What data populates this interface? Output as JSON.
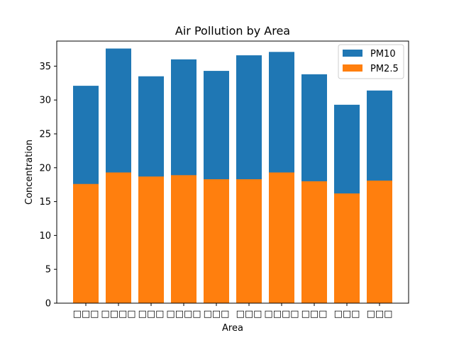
{
  "colors": {
    "pm10": "#1f77b4",
    "pm25": "#ff7f0e",
    "legend_border": "#cccccc"
  },
  "chart_data": {
    "type": "bar",
    "stacked_overlay": true,
    "title": "Air Pollution by Area",
    "xlabel": "Area",
    "ylabel": "Concentration",
    "ylim": [
      0,
      38.7
    ],
    "yticks": [
      0,
      5,
      10,
      15,
      20,
      25,
      30,
      35
    ],
    "grid": false,
    "legend_position": "top-right",
    "categories": [
      "□□□",
      "□□□□",
      "□□□",
      "□□□□",
      "□□□",
      "□□□",
      "□□□□",
      "□□□",
      "□□□",
      "□□□"
    ],
    "series": [
      {
        "name": "PM10",
        "color": "#1f77b4",
        "values": [
          32.1,
          37.6,
          33.5,
          36.0,
          34.3,
          36.6,
          37.1,
          33.8,
          29.3,
          31.4
        ]
      },
      {
        "name": "PM2.5",
        "color": "#ff7f0e",
        "values": [
          17.6,
          19.3,
          18.7,
          18.9,
          18.3,
          18.3,
          19.3,
          18.0,
          16.2,
          18.1
        ]
      }
    ]
  }
}
